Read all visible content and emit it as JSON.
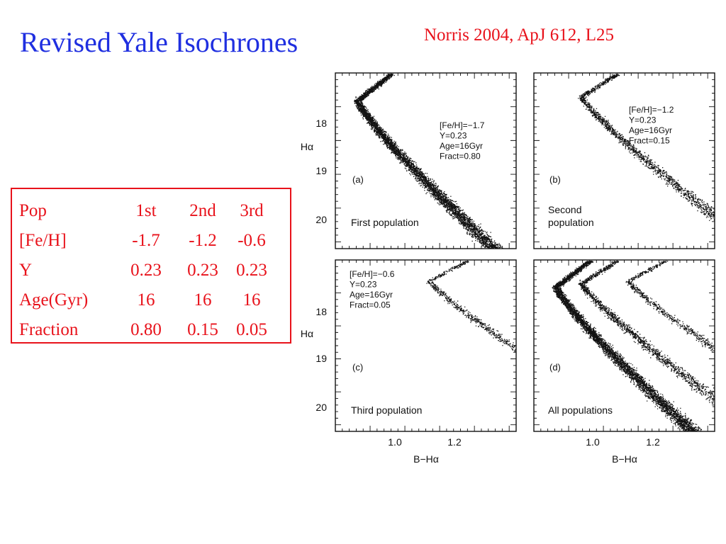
{
  "title": "Revised Yale Isochrones",
  "citation": "Norris 2004, ApJ 612, L25",
  "population_table": {
    "header": [
      "Pop",
      "1st",
      "2nd",
      "3rd"
    ],
    "rows": [
      [
        "[Fe/H]",
        "-1.7",
        "-1.2",
        "-0.6"
      ],
      [
        "Y",
        "0.23",
        "0.23",
        "0.23"
      ],
      [
        "Age(Gyr)",
        "16",
        "16",
        "16"
      ],
      [
        "Fraction",
        "0.80",
        "0.15",
        "0.05"
      ]
    ]
  },
  "figure": {
    "y_axis_label": "Hα",
    "x_axis_label": "B−Hα",
    "y_ticks": [
      "18",
      "19",
      "20"
    ],
    "x_ticks": [
      "1.0",
      "1.2"
    ],
    "panels": [
      {
        "id": "a",
        "tag": "(a)",
        "caption": [
          "First  population"
        ],
        "params": [
          "[Fe/H]=−1.7",
          "Y=0.23",
          "Age=16Gyr",
          "Fract=0.80"
        ]
      },
      {
        "id": "b",
        "tag": "(b)",
        "caption": [
          "Second",
          "population"
        ],
        "params": [
          "[Fe/H]=−1.2",
          "Y=0.23",
          "Age=16Gyr",
          "Fract=0.15"
        ]
      },
      {
        "id": "c",
        "tag": "(c)",
        "caption": [
          "Third  population"
        ],
        "params": [
          "[Fe/H]=−0.6",
          "Y=0.23",
          "Age=16Gyr",
          "Fract=0.05"
        ]
      },
      {
        "id": "d",
        "tag": "(d)",
        "caption": [
          "All  populations"
        ],
        "params": []
      }
    ]
  }
}
